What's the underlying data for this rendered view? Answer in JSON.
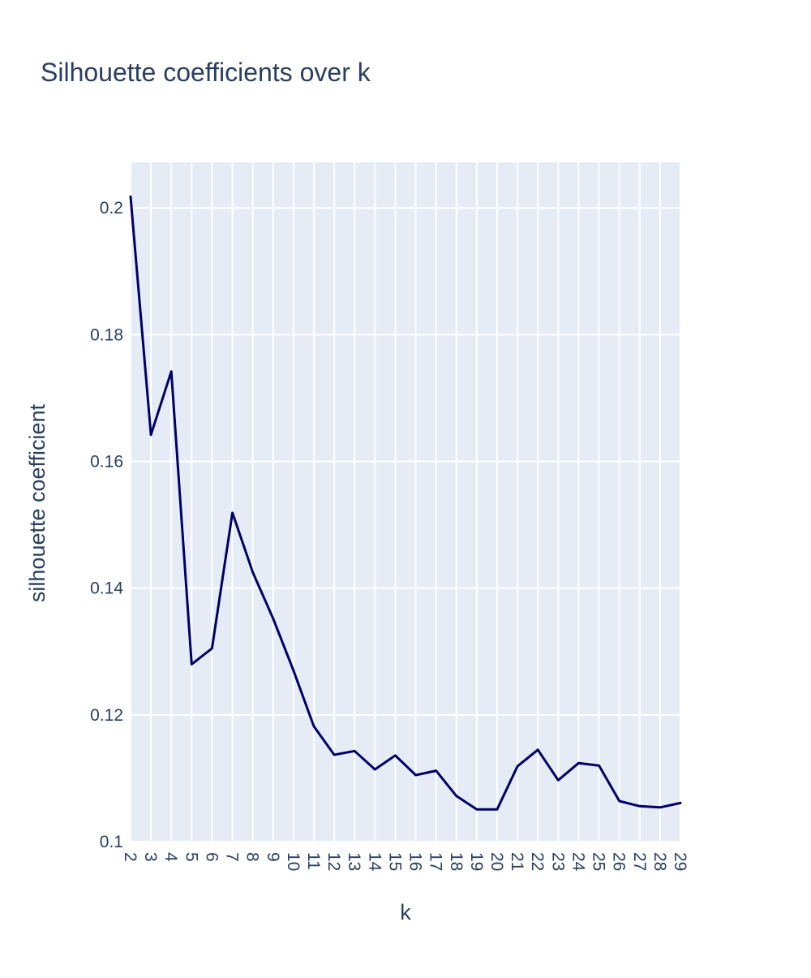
{
  "chart_data": {
    "type": "line",
    "title": "Silhouette coefficients over k",
    "xlabel": "k",
    "ylabel": "silhouette coefficient",
    "x": [
      2,
      3,
      4,
      5,
      6,
      7,
      8,
      9,
      10,
      11,
      12,
      13,
      14,
      15,
      16,
      17,
      18,
      19,
      20,
      21,
      22,
      23,
      24,
      25,
      26,
      27,
      28,
      29
    ],
    "y_ticks": [
      "0.1",
      "0.12",
      "0.14",
      "0.16",
      "0.18",
      "0.2"
    ],
    "y_tick_values": [
      0.1,
      0.12,
      0.14,
      0.16,
      0.18,
      0.2
    ],
    "ylim": [
      0.1,
      0.2072
    ],
    "xlim": [
      2,
      29
    ],
    "grid": true,
    "legend": "none",
    "series": [
      {
        "color": "#000066",
        "values": [
          0.2018,
          0.1642,
          0.1742,
          0.128,
          0.1305,
          0.1519,
          0.1425,
          0.1352,
          0.127,
          0.1182,
          0.1137,
          0.1143,
          0.1114,
          0.1136,
          0.1105,
          0.1112,
          0.1072,
          0.1051,
          0.1051,
          0.1119,
          0.1145,
          0.1097,
          0.1124,
          0.112,
          0.1064,
          0.1056,
          0.1054,
          0.1061
        ]
      }
    ],
    "colors": {
      "plot_bg": "#e5ecf6",
      "grid": "#ffffff",
      "text": "#2a3f5f"
    }
  }
}
